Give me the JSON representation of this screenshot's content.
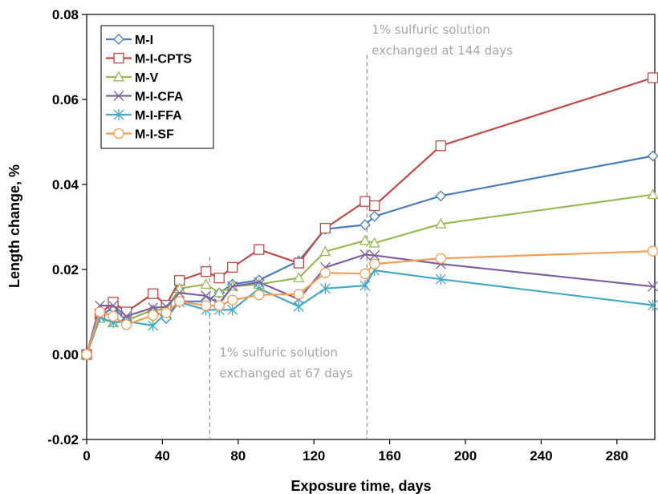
{
  "chart_data": {
    "type": "line",
    "title": "",
    "xlabel": "Exposure time, days",
    "ylabel": "Length change, %",
    "xlim": [
      0,
      300
    ],
    "ylim": [
      -0.02,
      0.08
    ],
    "xticks": [
      0,
      40,
      80,
      120,
      160,
      200,
      240,
      280
    ],
    "yticks": [
      -0.02,
      0.0,
      0.02,
      0.04,
      0.06,
      0.08
    ],
    "ytick_labels": [
      "-0.02",
      "0.00",
      "0.02",
      "0.04",
      "0.06",
      "0.08"
    ],
    "grid": false,
    "legend_position": "top-left",
    "series": [
      {
        "name": "M-I",
        "color": "#4a7ebb",
        "marker": "diamond",
        "x": [
          0,
          7,
          14,
          21,
          35,
          42,
          49,
          63,
          70,
          77,
          91,
          112,
          126,
          147,
          152,
          187,
          299
        ],
        "y": [
          0.0,
          0.009,
          0.011,
          0.008,
          0.0105,
          0.0085,
          0.0125,
          0.0125,
          0.0145,
          0.0165,
          0.0175,
          0.022,
          0.0295,
          0.0305,
          0.0325,
          0.0373,
          0.0467
        ]
      },
      {
        "name": "M-I-CPTS",
        "color": "#be4b48",
        "marker": "square",
        "x": [
          0,
          7,
          14,
          21,
          35,
          42,
          49,
          63,
          70,
          77,
          91,
          112,
          126,
          147,
          152,
          187,
          299
        ],
        "y": [
          0.0,
          0.0095,
          0.0123,
          0.01,
          0.0143,
          0.0116,
          0.0174,
          0.0195,
          0.018,
          0.0205,
          0.0247,
          0.0215,
          0.0297,
          0.036,
          0.035,
          0.0491,
          0.0651
        ]
      },
      {
        "name": "M-V",
        "color": "#98b954",
        "marker": "triangle",
        "x": [
          0,
          7,
          14,
          21,
          35,
          42,
          49,
          63,
          70,
          77,
          91,
          112,
          126,
          147,
          152,
          187,
          299
        ],
        "y": [
          0.0,
          0.0085,
          0.0075,
          0.008,
          0.0105,
          0.0105,
          0.0155,
          0.0165,
          0.0145,
          0.016,
          0.0165,
          0.018,
          0.0242,
          0.0268,
          0.0262,
          0.0307,
          0.0376
        ]
      },
      {
        "name": "M-I-CFA",
        "color": "#7d60a0",
        "marker": "x",
        "x": [
          0,
          7,
          14,
          21,
          35,
          42,
          49,
          63,
          70,
          77,
          91,
          112,
          126,
          147,
          152,
          187,
          299
        ],
        "y": [
          0.0,
          0.0115,
          0.0115,
          0.009,
          0.011,
          0.0112,
          0.0145,
          0.0138,
          0.012,
          0.016,
          0.017,
          0.013,
          0.0205,
          0.0235,
          0.0233,
          0.0213,
          0.016
        ]
      },
      {
        "name": "M-I-FFA",
        "color": "#46aac4",
        "marker": "asterisk",
        "x": [
          0,
          7,
          14,
          21,
          35,
          42,
          49,
          63,
          70,
          77,
          91,
          112,
          126,
          147,
          152,
          187,
          299
        ],
        "y": [
          0.0,
          0.0088,
          0.0075,
          0.0078,
          0.0068,
          0.0098,
          0.0123,
          0.0105,
          0.0105,
          0.0105,
          0.0155,
          0.0113,
          0.0155,
          0.0162,
          0.0198,
          0.0177,
          0.0116
        ]
      },
      {
        "name": "M-I-SF",
        "color": "#f59d56",
        "marker": "circle",
        "x": [
          0,
          7,
          14,
          21,
          35,
          42,
          49,
          63,
          70,
          77,
          91,
          112,
          126,
          147,
          152,
          187,
          299
        ],
        "y": [
          0.0,
          0.01,
          0.009,
          0.007,
          0.0092,
          0.0098,
          0.0125,
          0.0115,
          0.0115,
          0.0128,
          0.014,
          0.0142,
          0.0192,
          0.019,
          0.0213,
          0.0226,
          0.0243
        ]
      }
    ],
    "annotations": [
      {
        "x": 65,
        "lines": [
          "1% sulfuric solution",
          "exchanged at 67 days"
        ]
      },
      {
        "x": 148,
        "lines": [
          "1% sulfuric solution",
          "exchanged at 144 days"
        ]
      }
    ]
  }
}
